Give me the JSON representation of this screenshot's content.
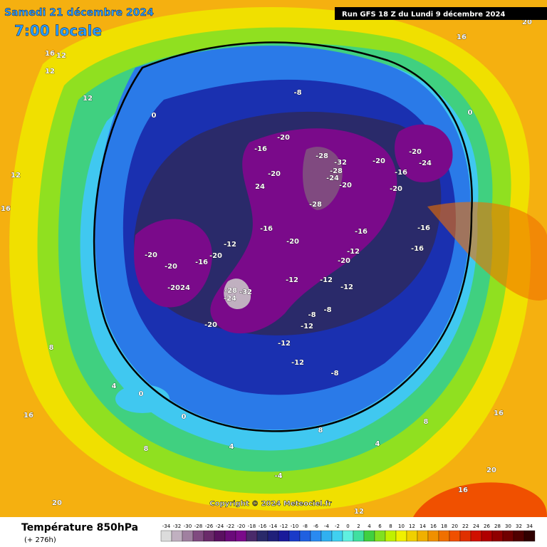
{
  "header": {
    "date": "Samedi 21 décembre 2024",
    "time": "7:00 locale",
    "run": "Run GFS 18 Z du Lundi 9 décembre 2024"
  },
  "footer": {
    "title": "Température 850hPa",
    "subtitle": "(+ 276h)",
    "copyright": "Copyright © 2024 Meteociel.fr"
  },
  "scale": {
    "values": [
      -34,
      -32,
      -30,
      -28,
      -26,
      -24,
      -22,
      -20,
      -18,
      -16,
      -14,
      -12,
      -10,
      -8,
      -6,
      -4,
      -2,
      0,
      2,
      4,
      6,
      8,
      10,
      12,
      14,
      16,
      18,
      20,
      22,
      24,
      26,
      28,
      30,
      32,
      34
    ],
    "colors": [
      "#dcdcdc",
      "#c0b0c0",
      "#a080a0",
      "#804a80",
      "#6a2a6a",
      "#5a1060",
      "#6a0a7a",
      "#7a0a8a",
      "#4a2a6a",
      "#2a2a6a",
      "#20207a",
      "#1a1a9a",
      "#1a3ac8",
      "#2060e0",
      "#2a8af0",
      "#30b0f0",
      "#40d0f0",
      "#60f0e0",
      "#40e0a0",
      "#40d040",
      "#80e020",
      "#c0f000",
      "#f0f000",
      "#f0d000",
      "#f0b000",
      "#f09000",
      "#f07000",
      "#f05000",
      "#e03000",
      "#d01000",
      "#b00000",
      "#900000",
      "#700000",
      "#500000",
      "#300000"
    ]
  },
  "map": {
    "labels": [
      -8,
      -20,
      -16,
      -20,
      24,
      -28,
      -32,
      -28,
      -24,
      -20,
      -28,
      -16,
      -20,
      -16,
      -20,
      -24,
      -16,
      -20,
      -20,
      -16,
      -16,
      -20,
      -20,
      -20,
      24,
      -16,
      -20,
      -12,
      -28,
      -24,
      -32,
      -20,
      -12,
      -12,
      -12,
      -12,
      -20,
      -8,
      -8,
      -12,
      -12,
      -12,
      -8,
      0,
      0,
      16,
      12,
      16,
      12,
      12,
      12,
      16,
      8,
      4,
      0,
      16,
      0,
      4,
      -4,
      8,
      4,
      8,
      16,
      20,
      16,
      20,
      8,
      12,
      20
    ]
  }
}
